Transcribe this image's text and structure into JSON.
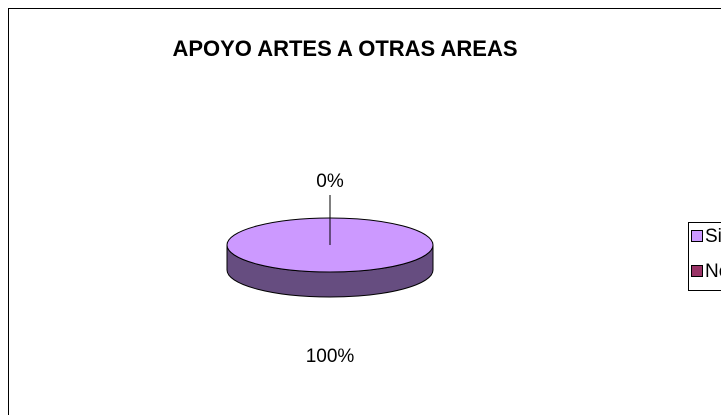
{
  "chart_data": {
    "type": "pie3d",
    "title": "APOYO ARTES A OTRAS AREAS",
    "categories": [
      "Si",
      "No"
    ],
    "values": [
      100,
      0
    ],
    "value_labels": [
      "100%",
      "0%"
    ],
    "colors": [
      "#cc99ff",
      "#993366"
    ],
    "legend": "right"
  }
}
